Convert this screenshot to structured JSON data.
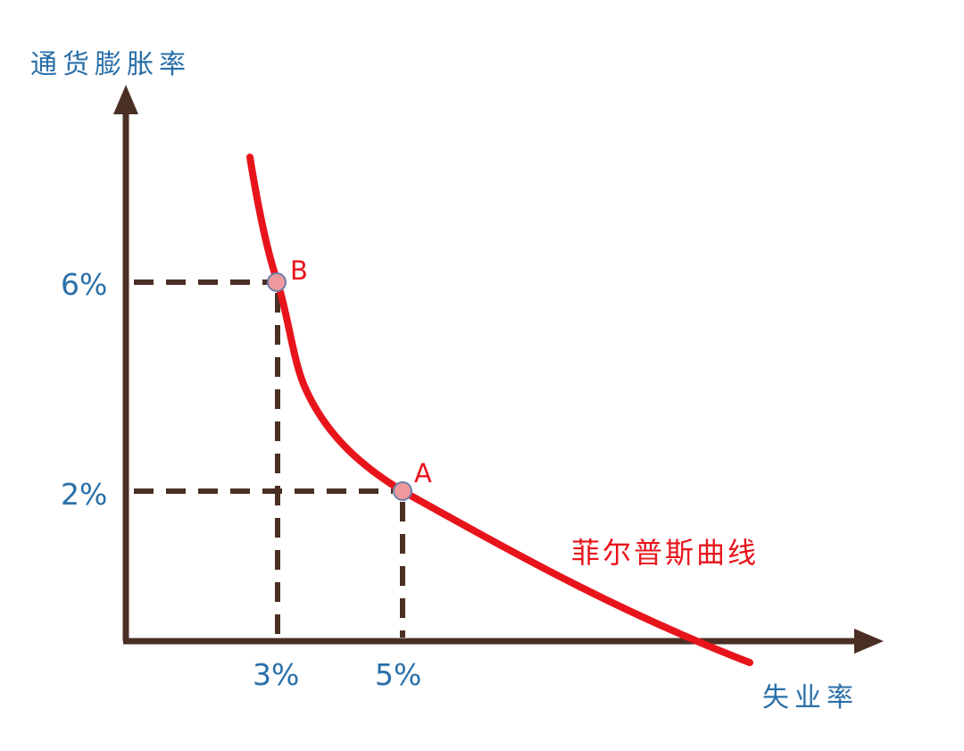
{
  "diagram": {
    "y_axis_title": "通货膨胀率",
    "x_axis_title": "失业率",
    "curve_label": "菲尔普斯曲线",
    "points": [
      {
        "label": "B",
        "unemployment": "3%",
        "inflation": "6%"
      },
      {
        "label": "A",
        "unemployment": "5%",
        "inflation": "2%"
      }
    ],
    "y_ticks": [
      "6%",
      "2%"
    ],
    "x_ticks": [
      "3%",
      "5%"
    ],
    "colors": {
      "axis": "#4a2f24",
      "curve": "#e8141b",
      "point_fill": "#f0999c",
      "axis_text": "#2a6fa8"
    }
  }
}
